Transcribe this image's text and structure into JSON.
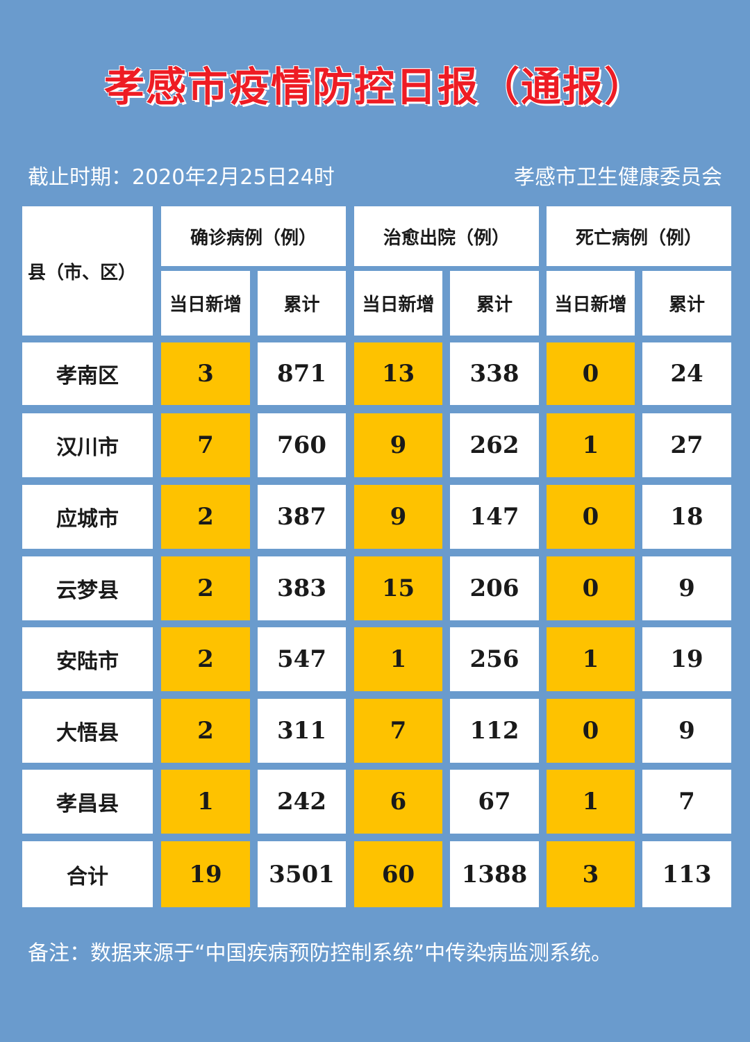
{
  "title": "孝感市疫情防控日报（通报）",
  "cutoff": "截止时期：2020年2月25日24时",
  "issuer": "孝感市卫生健康委员会",
  "table": {
    "row_header": "县（市、区）",
    "groups": [
      "确诊病例（例）",
      "治愈出院（例）",
      "死亡病例（例）"
    ],
    "sub_new": "当日新增",
    "sub_total": "累计",
    "rows": [
      {
        "name": "孝南区",
        "values": [
          "3",
          "871",
          "13",
          "338",
          "0",
          "24"
        ]
      },
      {
        "name": "汉川市",
        "values": [
          "7",
          "760",
          "9",
          "262",
          "1",
          "27"
        ]
      },
      {
        "name": "应城市",
        "values": [
          "2",
          "387",
          "9",
          "147",
          "0",
          "18"
        ]
      },
      {
        "name": "云梦县",
        "values": [
          "2",
          "383",
          "15",
          "206",
          "0",
          "9"
        ]
      },
      {
        "name": "安陆市",
        "values": [
          "2",
          "547",
          "1",
          "256",
          "1",
          "19"
        ]
      },
      {
        "name": "大悟县",
        "values": [
          "2",
          "311",
          "7",
          "112",
          "0",
          "9"
        ]
      },
      {
        "name": "孝昌县",
        "values": [
          "1",
          "242",
          "6",
          "67",
          "1",
          "7"
        ]
      },
      {
        "name": "合计",
        "values": [
          "19",
          "3501",
          "60",
          "1388",
          "3",
          "113"
        ]
      }
    ]
  },
  "note": "备注：数据来源于“中国疾病预防控制系统”中传染病监测系统。",
  "colors": {
    "background": "#6a9bcd",
    "title": "#ee1c24",
    "highlight": "#fec200",
    "cell": "#ffffff"
  }
}
